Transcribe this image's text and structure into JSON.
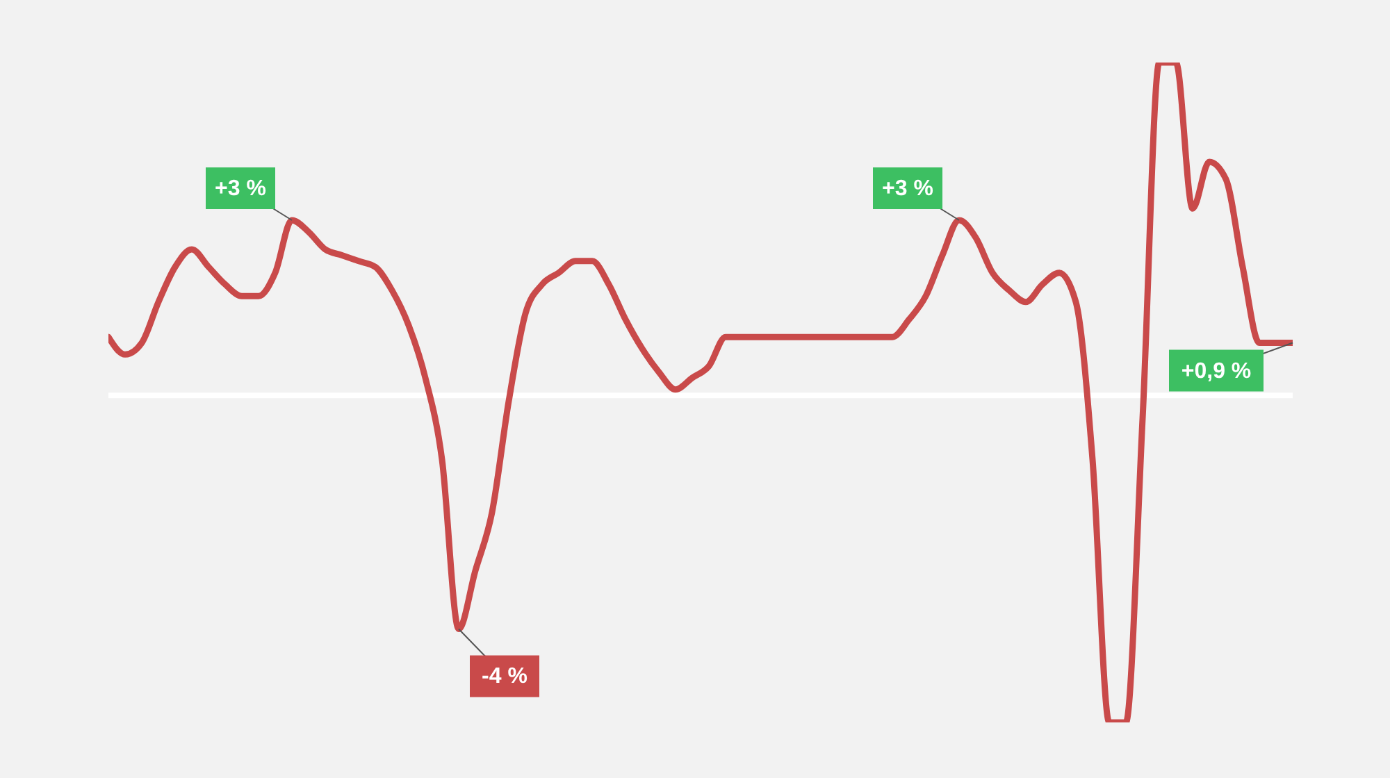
{
  "chart_data": {
    "type": "line",
    "categories": [
      null,
      null,
      null,
      null,
      null,
      null,
      null,
      null,
      null,
      null,
      null,
      null,
      null,
      null,
      null,
      null,
      null,
      null,
      null,
      null,
      null,
      null,
      null,
      null,
      null,
      null,
      null,
      null,
      null,
      null,
      null,
      null,
      null,
      null,
      null,
      null,
      null,
      null,
      null,
      null,
      null,
      null,
      null,
      null,
      null,
      null,
      null,
      null,
      null,
      null,
      null,
      null,
      null,
      null,
      null,
      null,
      null,
      null,
      null,
      null,
      null,
      null,
      null,
      null,
      null,
      null,
      null,
      null,
      null,
      null,
      null,
      null
    ],
    "series": [
      {
        "color": "#c94a4a",
        "values": [
          1.0,
          0.7,
          0.9,
          1.6,
          2.2,
          2.5,
          2.2,
          1.9,
          1.7,
          1.7,
          2.1,
          3,
          2.8,
          2.5,
          2.4,
          2.3,
          2.2,
          1.8,
          1.2,
          0.3,
          -1.1,
          -4,
          -3.0,
          -2.0,
          -0.1,
          1.4,
          1.9,
          2.1,
          2.3,
          2.3,
          1.9,
          1.3,
          0.8,
          0.4,
          0.1,
          0.3,
          0.5,
          1.0,
          1.0,
          1.0,
          1.0,
          1.0,
          1.0,
          1.0,
          1.0,
          1.0,
          1.0,
          1.0,
          1.3,
          1.7,
          2.4,
          3,
          2.7,
          2.1,
          1.8,
          1.6,
          1.9,
          2.1,
          1.6,
          -1.1,
          -5.6,
          -5.6,
          -0.4,
          5.7,
          5.7,
          3.2,
          4.0,
          3.7,
          2.2,
          0.9,
          0.9,
          0.9
        ],
        "value_labels": [
          null,
          null,
          null,
          null,
          null,
          null,
          null,
          null,
          null,
          null,
          null,
          "+3 %",
          null,
          null,
          null,
          null,
          null,
          null,
          null,
          null,
          null,
          "-4 %",
          null,
          null,
          null,
          null,
          null,
          null,
          null,
          null,
          null,
          null,
          null,
          null,
          null,
          null,
          null,
          null,
          null,
          null,
          null,
          null,
          null,
          null,
          null,
          null,
          null,
          null,
          null,
          null,
          null,
          "+3 %",
          null,
          null,
          null,
          null,
          null,
          null,
          null,
          null,
          null,
          null,
          null,
          null,
          null,
          null,
          null,
          null,
          null,
          null,
          null,
          "+0,9 %"
        ]
      }
    ],
    "ref_lines": [
      {
        "axis": "y",
        "value": 0,
        "color": "#ffffff"
      }
    ],
    "tick_labels": false,
    "line_style": "solid"
  }
}
